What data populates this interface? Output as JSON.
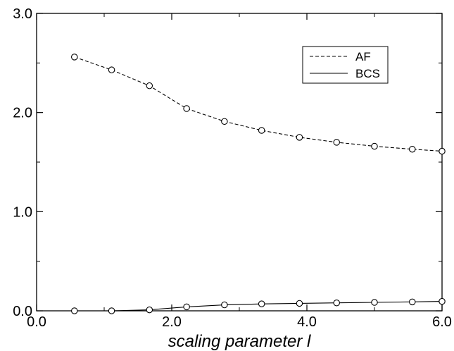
{
  "chart_data": {
    "type": "line",
    "title": "",
    "xlabel": "scaling parameter l",
    "ylabel": "",
    "xlim": [
      0.0,
      6.0
    ],
    "ylim": [
      0.0,
      3.0
    ],
    "x_ticks": [
      "0.0",
      "2.0",
      "4.0",
      "6.0"
    ],
    "y_ticks": [
      "0.0",
      "1.0",
      "2.0",
      "3.0"
    ],
    "grid": false,
    "legend_position": "top-right",
    "series": [
      {
        "name": "AF",
        "line_style": "dashed",
        "marker": "open-circle",
        "x": [
          0.56,
          1.11,
          1.67,
          2.22,
          2.78,
          3.33,
          3.89,
          4.44,
          5.0,
          5.56,
          6.0
        ],
        "y": [
          2.56,
          2.43,
          2.27,
          2.04,
          1.91,
          1.82,
          1.75,
          1.7,
          1.66,
          1.63,
          1.61
        ]
      },
      {
        "name": "BCS",
        "line_style": "solid",
        "marker": "open-circle",
        "x": [
          0.56,
          1.11,
          1.67,
          2.22,
          2.78,
          3.33,
          3.89,
          4.44,
          5.0,
          5.56,
          6.0
        ],
        "y": [
          0.0,
          0.0,
          0.01,
          0.04,
          0.06,
          0.07,
          0.075,
          0.08,
          0.085,
          0.09,
          0.095
        ]
      }
    ]
  }
}
